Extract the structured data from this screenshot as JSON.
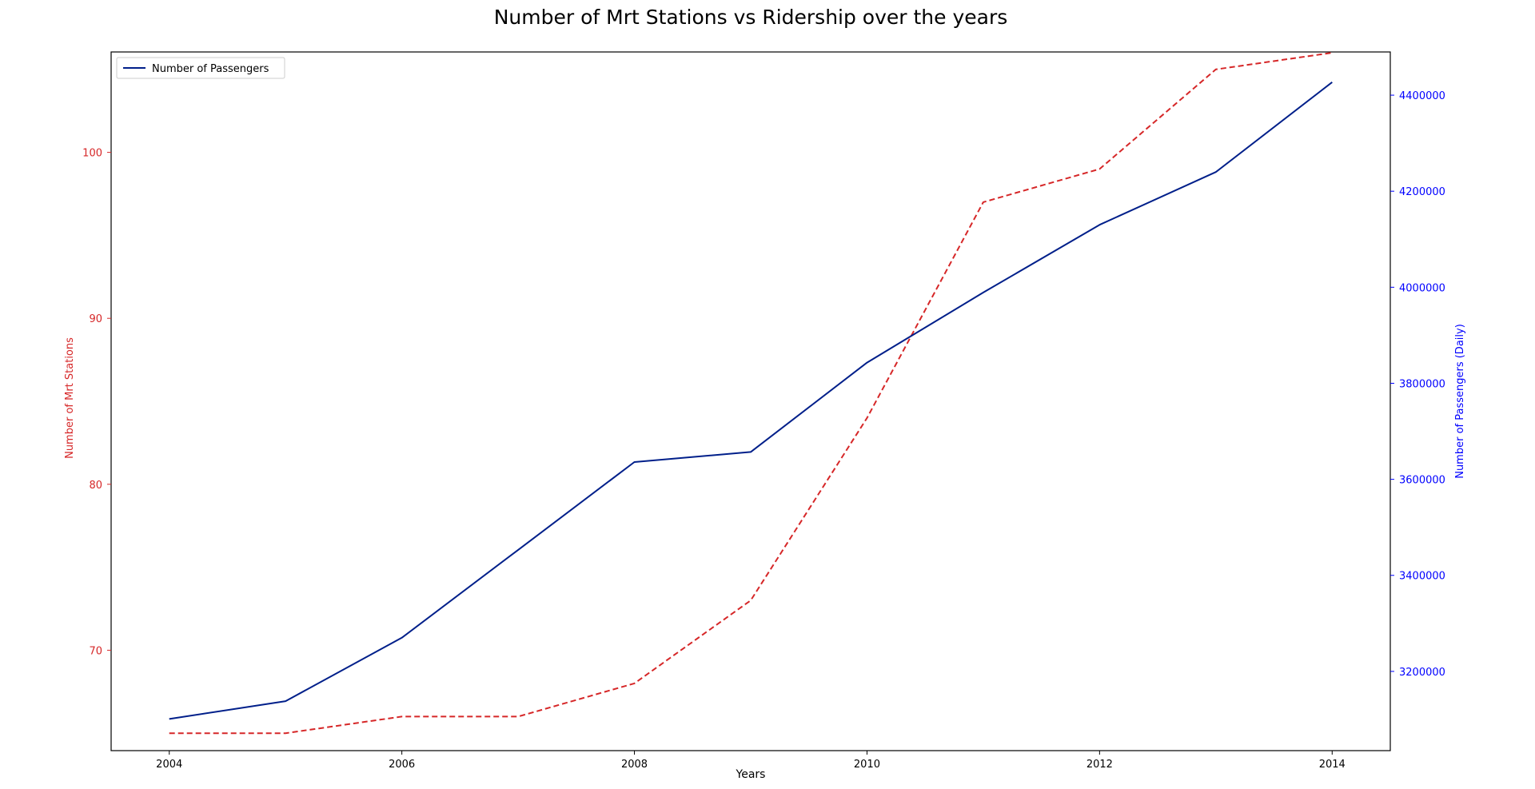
{
  "chart_data": {
    "type": "line",
    "title": "Number of Mrt Stations vs Ridership over the years",
    "xlabel": "Years",
    "x": [
      2004,
      2005,
      2006,
      2007,
      2008,
      2009,
      2010,
      2011,
      2012,
      2013,
      2014
    ],
    "xlim": [
      2003.5,
      2014.5
    ],
    "x_ticks": [
      "2004",
      "2006",
      "2008",
      "2010",
      "2012",
      "2014"
    ],
    "grid": false,
    "legend_position": "top-left",
    "left_axis": {
      "label": "Number of Mrt Stations",
      "color": "#d62728",
      "ylim": [
        63.95,
        106.05
      ],
      "ticks": [
        "70",
        "80",
        "90",
        "100"
      ]
    },
    "right_axis": {
      "label": "Number of Passengers (Daily)",
      "color": "#0000ff",
      "ylim": [
        3035000,
        4490000
      ],
      "ticks": [
        "3200000",
        "3400000",
        "3600000",
        "3800000",
        "4000000",
        "4200000",
        "4400000"
      ]
    },
    "series": [
      {
        "axis": "left",
        "style": "dashed",
        "color": "#d62728",
        "values": [
          65,
          65,
          66,
          66,
          68,
          73,
          84,
          97,
          99,
          105,
          106
        ]
      },
      {
        "name": "Number of Passengers",
        "axis": "right",
        "style": "solid",
        "color": "#001f8a",
        "values": [
          3101000,
          3138000,
          3270000,
          3453000,
          3636000,
          3657000,
          3843000,
          3989000,
          4130000,
          4240000,
          4427000
        ]
      }
    ]
  }
}
